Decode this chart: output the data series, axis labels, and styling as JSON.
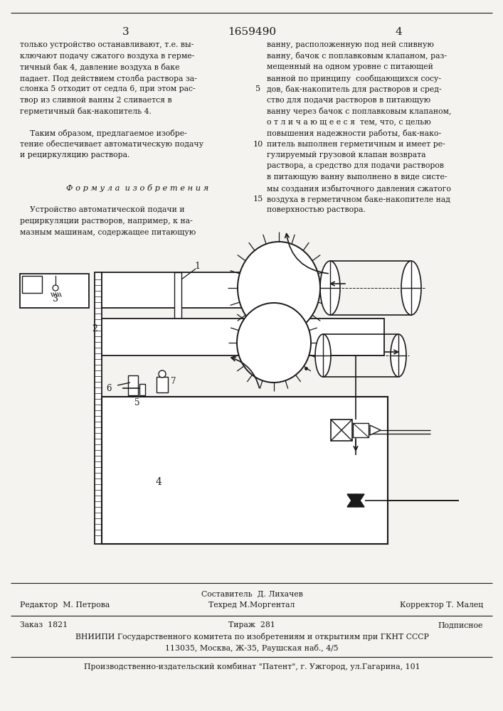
{
  "page_num_left": "3",
  "patent_num": "1659490",
  "page_num_right": "4",
  "bg_color": "#f5f3ef",
  "text_color": "#1a1a1a",
  "col_left_text": [
    "только устройство останавливают, т.е. вы-",
    "ключают подачу сжатого воздуха в герме-",
    "тичный бак 4, давление воздуха в баке",
    "падает. Под действием столба раствора за-",
    "слонка 5 отходит от седла 6, при этом рас-",
    "твор из сливной ванны 2 сливается в",
    "герметичный бак-накопитель 4.",
    "",
    "    Таким образом, предлагаемое изобре-",
    "тение обеспечивает автоматическую подачу",
    "и рециркуляцию раствора.",
    "",
    "",
    "Ф о р м у л а  и з о б р е т е н и я",
    "",
    "    Устройство автоматической подачи и",
    "рециркуляции растворов, например, к на-",
    "мазным машинам, содержащее питающую"
  ],
  "col_right_text": [
    "ванну, расположенную под ней сливную",
    "ванну, бачок с поплавковым клапаном, раз-",
    "мещенный на одном уровне с питающей",
    "ванной по принципу  сообщающихся сосу-",
    "дов, бак-накопитель для растворов и сред-",
    "ство для подачи растворов в питающую",
    "ванну через бачок с поплавковым клапаном,",
    "о т л и ч а ю щ е е с я  тем, что, с целью",
    "повышения надежности работы, бак-нако-",
    "питель выполнен герметичным и имеет ре-",
    "гулируемый грузовой клапан возврата",
    "раствора, а средство для подачи растворов",
    "в питающую ванну выполнено в виде систе-",
    "мы создания избыточного давления сжатого",
    "воздуха в герметичном баке-накопителе над",
    "поверхностью раствора."
  ],
  "footer_line1_left": "Редактор  М. Петрова",
  "footer_line1_center_top": "Составитель  Д. Лихачев",
  "footer_line1_center": "Техред М.Моргентал",
  "footer_line1_right": "Корректор Т. Малец",
  "footer_line2_col1": "Заказ  1821",
  "footer_line2_col2": "Тираж  281",
  "footer_line2_col3": "Подписное",
  "footer_line3": "ВНИИПИ Государственного комитета по изобретениям и открытиям при ГКНТ СССР",
  "footer_line4": "113035, Москва, Ж-35, Раушская наб., 4/5",
  "footer_line5": "Производственно-издательский комбинат \"Патент\", г. Ужгород, ул.Гагарина, 101"
}
